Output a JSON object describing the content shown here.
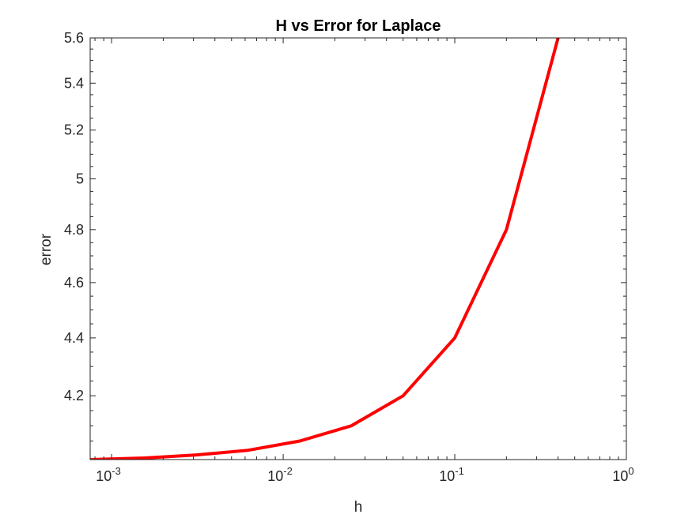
{
  "chart_data": {
    "type": "line",
    "title": "H vs Error for Laplace",
    "xlabel": "h",
    "ylabel": "error",
    "x_scale": "log",
    "y_scale": "log",
    "xlim": [
      0.00075,
      1
    ],
    "ylim": [
      3.99,
      5.6
    ],
    "x_ticks": [
      {
        "value": 0.001,
        "base": "10",
        "exp": "-3"
      },
      {
        "value": 0.01,
        "base": "10",
        "exp": "-2"
      },
      {
        "value": 0.1,
        "base": "10",
        "exp": "-1"
      },
      {
        "value": 1,
        "base": "10",
        "exp": "0"
      }
    ],
    "y_ticks": [
      {
        "value": 4.2,
        "label": "4.2"
      },
      {
        "value": 4.4,
        "label": "4.4"
      },
      {
        "value": 4.6,
        "label": "4.6"
      },
      {
        "value": 4.8,
        "label": "4.8"
      },
      {
        "value": 5.0,
        "label": "5"
      },
      {
        "value": 5.2,
        "label": "5.2"
      },
      {
        "value": 5.4,
        "label": "5.4"
      },
      {
        "value": 5.6,
        "label": "5.6"
      }
    ],
    "grid": false,
    "series": [
      {
        "color": "#ff0000",
        "x": [
          0.00075,
          0.0015625,
          0.003125,
          0.00625,
          0.0125,
          0.025,
          0.05,
          0.1,
          0.2,
          0.4
        ],
        "y": [
          3.99,
          3.995,
          4.005,
          4.02,
          4.05,
          4.1,
          4.2,
          4.4,
          4.8,
          5.6
        ]
      }
    ]
  }
}
